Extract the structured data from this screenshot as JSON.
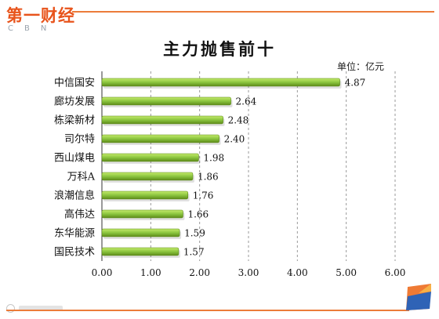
{
  "brand": {
    "logo_text": "第一财经",
    "logo_sub": "CBN"
  },
  "colors": {
    "accent": "#ec7c3a",
    "bar": "#8bc53f",
    "bar_light": "#c4ea6c",
    "bar_dark": "#5d8a19"
  },
  "unit_label": "单位：亿元",
  "chart_data": {
    "type": "bar",
    "orientation": "horizontal",
    "title": "主力抛售前十",
    "categories": [
      "中信国安",
      "廊坊发展",
      "栋梁新材",
      "司尔特",
      "西山煤电",
      "万科A",
      "浪潮信息",
      "高伟达",
      "东华能源",
      "国民技术"
    ],
    "values": [
      4.87,
      2.64,
      2.48,
      2.4,
      1.98,
      1.86,
      1.76,
      1.66,
      1.59,
      1.57
    ],
    "value_labels": [
      "4.87",
      "2.64",
      "2.48",
      "2.40",
      "1.98",
      "1.86",
      "1.76",
      "1.66",
      "1.59",
      "1.57"
    ],
    "xlim": [
      0,
      6
    ],
    "x_ticks": [
      "0.00",
      "1.00",
      "2.00",
      "3.00",
      "4.00",
      "5.00",
      "6.00"
    ],
    "grid": "vertical dashed",
    "legend": "none"
  }
}
